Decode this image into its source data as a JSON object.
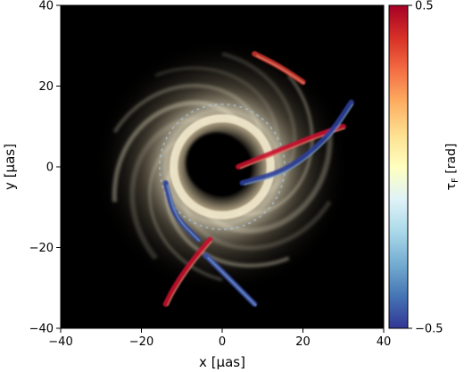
{
  "chart_data": {
    "type": "heatmap",
    "title": "",
    "xlabel": "x [μas]",
    "ylabel": "y [μas]",
    "xlim": [
      -40,
      40
    ],
    "ylim": [
      -40,
      40
    ],
    "xticks": [
      "−40",
      "−20",
      "0",
      "20",
      "40"
    ],
    "xtick_values": [
      -40,
      -20,
      0,
      20,
      40
    ],
    "yticks": [
      "−40",
      "−20",
      "0",
      "20",
      "40"
    ],
    "ytick_values": [
      -40,
      -20,
      0,
      20,
      40
    ],
    "grid": false,
    "colorbar": {
      "label": "τ_F [rad]",
      "label_main": "τ",
      "label_sub": "F",
      "label_unit": " [rad]",
      "range": [
        -0.5,
        0.5
      ],
      "ticks": [
        "−0.5",
        "0.5"
      ],
      "tick_values": [
        -0.5,
        0.5
      ],
      "colormap": "RdYlBu_r",
      "stops": [
        "#313695",
        "#4575b4",
        "#74add1",
        "#abd9e9",
        "#e0f3f8",
        "#ffffbf",
        "#fee090",
        "#fdae61",
        "#f46d43",
        "#d73027",
        "#a50026"
      ]
    },
    "background_color": "#000000",
    "emission_color": "#f4ecd0",
    "ring": {
      "center": [
        0,
        0
      ],
      "shadow_radius": 7.5,
      "bright_ring_radius": 12,
      "outer_extent": 32
    },
    "polarization_features": [
      {
        "sign": "positive",
        "color": "#c8102e",
        "description": "strands",
        "points": [
          [
            4,
            0
          ],
          [
            14,
            4
          ],
          [
            24,
            8
          ],
          [
            30,
            10
          ]
        ]
      },
      {
        "sign": "positive",
        "color": "#c8102e",
        "points": [
          [
            -3,
            -18
          ],
          [
            -8,
            -24
          ],
          [
            -12,
            -30
          ],
          [
            -14,
            -34
          ]
        ]
      },
      {
        "sign": "positive",
        "color": "#d0342c",
        "points": [
          [
            8,
            28
          ],
          [
            14,
            25
          ],
          [
            20,
            21
          ]
        ]
      },
      {
        "sign": "negative",
        "color": "#2c3e9a",
        "points": [
          [
            5,
            -4
          ],
          [
            16,
            -1
          ],
          [
            26,
            7
          ],
          [
            32,
            16
          ]
        ]
      },
      {
        "sign": "negative",
        "color": "#2c3e9a",
        "points": [
          [
            -14,
            -4
          ],
          [
            -12,
            -12
          ],
          [
            -6,
            -18
          ]
        ]
      },
      {
        "sign": "negative",
        "color": "#3a4ea8",
        "points": [
          [
            -4,
            -22
          ],
          [
            2,
            -28
          ],
          [
            8,
            -34
          ]
        ]
      }
    ]
  }
}
